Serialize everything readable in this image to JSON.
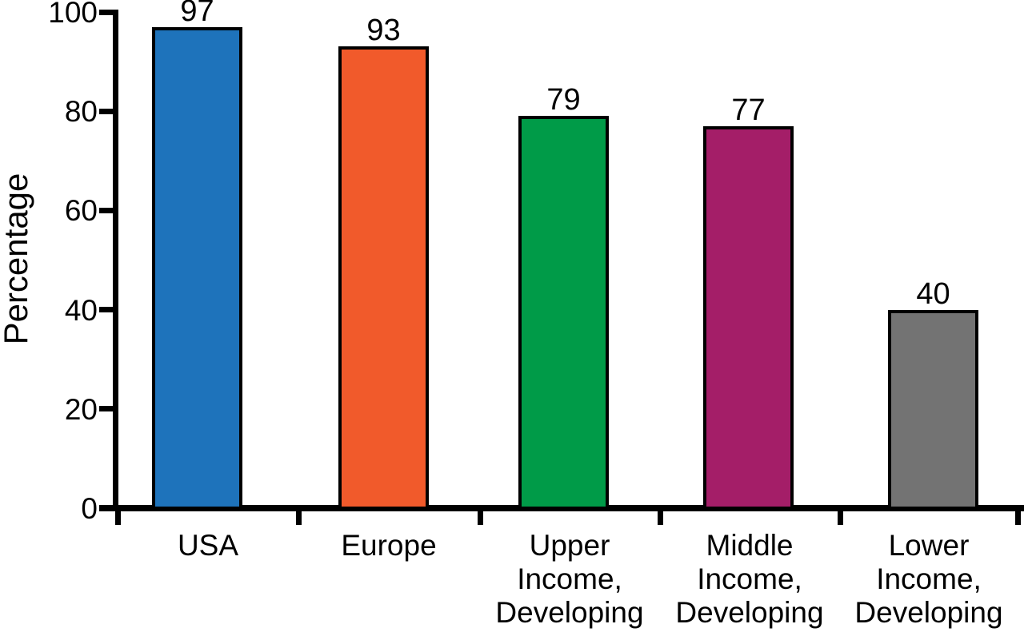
{
  "chart_data": {
    "type": "bar",
    "title": "",
    "xlabel": "",
    "ylabel": "Percentage",
    "categories": [
      "USA",
      "Europe",
      "Upper Income, Developing",
      "Middle Income, Developing",
      "Lower Income, Developing"
    ],
    "category_lines": [
      [
        "USA"
      ],
      [
        "Europe"
      ],
      [
        "Upper",
        "Income,",
        "Developing"
      ],
      [
        "Middle",
        "Income,",
        "Developing"
      ],
      [
        "Lower",
        "Income,",
        "Developing"
      ]
    ],
    "values": [
      97,
      93,
      79,
      77,
      40
    ],
    "value_labels": [
      "97",
      "93",
      "79",
      "77",
      "40"
    ],
    "bar_colors": [
      "#1E73BB",
      "#F15A2B",
      "#009B48",
      "#A41E68",
      "#737373"
    ],
    "bar_border_color": "#000000",
    "axis_color": "#000000",
    "text_color": "#000000",
    "background_color": "#FFFFFF",
    "ylim": [
      0,
      100
    ],
    "yticks": [
      0,
      20,
      40,
      60,
      80,
      100
    ],
    "ytick_labels": [
      "0",
      "20",
      "40",
      "60",
      "80",
      "100"
    ],
    "grid": false,
    "legend": null
  }
}
